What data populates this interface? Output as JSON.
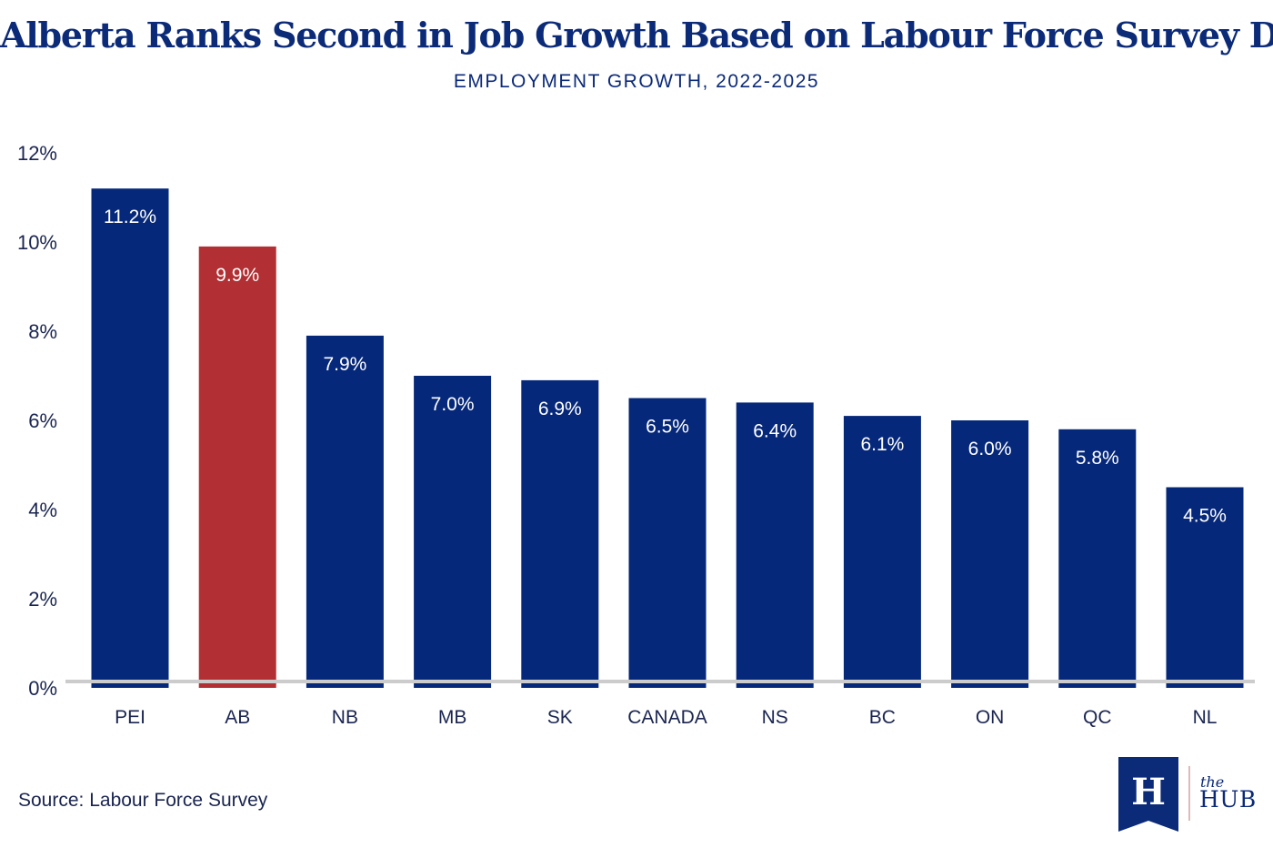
{
  "header": {
    "title": "Alberta Ranks Second in Job Growth Based on Labour Force Survey Data",
    "subtitle": "EMPLOYMENT GROWTH, 2022-2025"
  },
  "footer": {
    "source": "Source: Labour Force Survey",
    "logo_the": "the",
    "logo_hub": "HUB",
    "logo_letter": "H"
  },
  "colors": {
    "primary_bar": "#06287a",
    "highlight_bar": "#b22f33",
    "axis_line": "#cccccc",
    "text_dark": "#1a2550",
    "title": "#0b2a78"
  },
  "chart_data": {
    "type": "bar",
    "title": "Alberta Ranks Second in Job Growth Based on Labour Force Survey Data",
    "subtitle": "EMPLOYMENT GROWTH, 2022-2025",
    "categories": [
      "PEI",
      "AB",
      "NB",
      "MB",
      "SK",
      "CANADA",
      "NS",
      "BC",
      "ON",
      "QC",
      "NL"
    ],
    "values": [
      11.2,
      9.9,
      7.9,
      7.0,
      6.9,
      6.5,
      6.4,
      6.1,
      6.0,
      5.8,
      4.5
    ],
    "data_labels": [
      "11.2%",
      "9.9%",
      "7.9%",
      "7.0%",
      "6.9%",
      "6.5%",
      "6.4%",
      "6.1%",
      "6.0%",
      "5.8%",
      "4.5%"
    ],
    "highlight_category": "AB",
    "y_ticks": [
      0,
      2,
      4,
      6,
      8,
      10,
      12
    ],
    "y_tick_labels": [
      "0%",
      "2%",
      "4%",
      "6%",
      "8%",
      "10%",
      "12%"
    ],
    "ylim": [
      0,
      12
    ],
    "xlabel": "",
    "ylabel": "",
    "grid": false,
    "legend": "none"
  }
}
